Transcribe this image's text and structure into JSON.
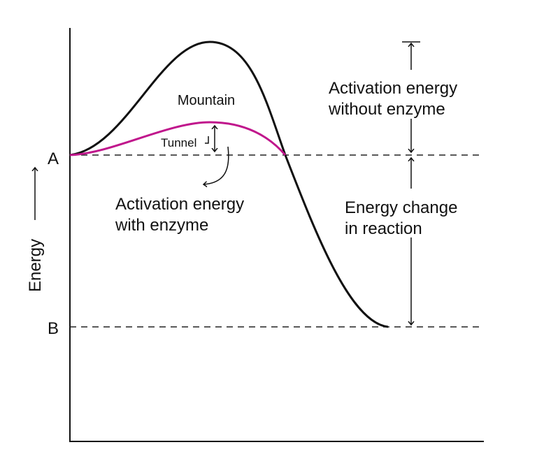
{
  "axis_label": "Energy",
  "levels": [
    {
      "label": "A"
    },
    {
      "label": "B"
    }
  ],
  "curves": [
    {
      "label": "Mountain"
    },
    {
      "label": "Tunnel"
    }
  ],
  "annotations": [
    {
      "lines": [
        "Activation energy",
        "with enzyme"
      ]
    },
    {
      "lines": [
        "Activation energy",
        "without enzyme"
      ]
    },
    {
      "lines": [
        "Energy change",
        "in reaction"
      ]
    }
  ]
}
